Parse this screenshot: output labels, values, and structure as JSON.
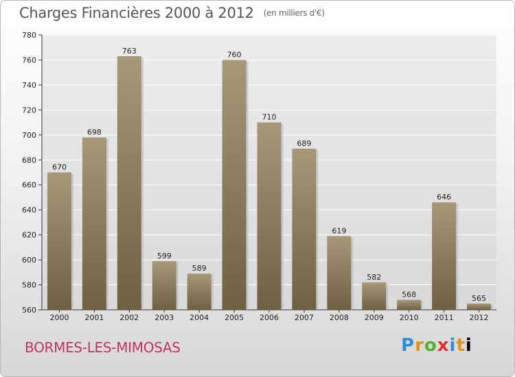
{
  "header": {
    "title": "Charges Financières 2000 à 2012",
    "unit": "(en milliers d'€)"
  },
  "footer": {
    "commune": "BORMES-LES-MIMOSAS",
    "brand_letters": [
      "P",
      "r",
      "o",
      "x",
      "i",
      "t",
      "i"
    ]
  },
  "colors": {
    "bar_top": "#a8987a",
    "bar_bottom": "#6f5f43",
    "commune": "#c0345e"
  },
  "chart_data": {
    "type": "bar",
    "title": "Charges Financières 2000 à 2012",
    "subtitle": "(en milliers d'€)",
    "xlabel": "",
    "ylabel": "",
    "categories": [
      "2000",
      "2001",
      "2002",
      "2003",
      "2004",
      "2005",
      "2006",
      "2007",
      "2008",
      "2009",
      "2010",
      "2011",
      "2012"
    ],
    "values": [
      670,
      698,
      763,
      599,
      589,
      760,
      710,
      689,
      619,
      582,
      568,
      646,
      565
    ],
    "ylim": [
      560,
      780
    ],
    "yticks": [
      560,
      580,
      600,
      620,
      640,
      660,
      680,
      700,
      720,
      740,
      760,
      780
    ],
    "grid": "horizontal",
    "data_labels": true
  }
}
